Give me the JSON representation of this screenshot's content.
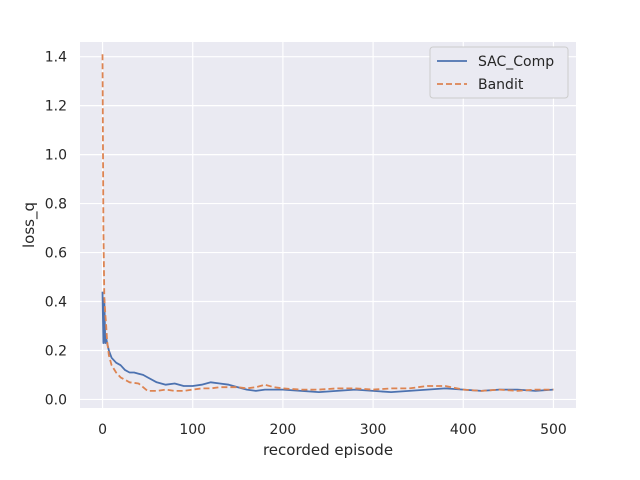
{
  "chart_data": {
    "type": "line",
    "title": "",
    "xlabel": "recorded episode",
    "ylabel": "loss_q",
    "xlim": [
      -25,
      525
    ],
    "ylim": [
      -0.035,
      1.46
    ],
    "x_ticks": [
      0,
      100,
      200,
      300,
      400,
      500
    ],
    "y_ticks": [
      0.0,
      0.2,
      0.4,
      0.6,
      0.8,
      1.0,
      1.2,
      1.4
    ],
    "x_tick_labels": [
      "0",
      "100",
      "200",
      "300",
      "400",
      "500"
    ],
    "y_tick_labels": [
      "0.0",
      "0.2",
      "0.4",
      "0.6",
      "0.8",
      "1.0",
      "1.2",
      "1.4"
    ],
    "grid": true,
    "legend_position": "top-right",
    "series": [
      {
        "name": "SAC_Comp",
        "color": "#4c72b0",
        "style": "solid",
        "points": [
          [
            0,
            0.44
          ],
          [
            1,
            0.23
          ],
          [
            2,
            0.41
          ],
          [
            3,
            0.23
          ],
          [
            4,
            0.25
          ],
          [
            5,
            0.23
          ],
          [
            7,
            0.2
          ],
          [
            10,
            0.17
          ],
          [
            15,
            0.15
          ],
          [
            20,
            0.14
          ],
          [
            25,
            0.12
          ],
          [
            30,
            0.11
          ],
          [
            35,
            0.11
          ],
          [
            40,
            0.105
          ],
          [
            45,
            0.1
          ],
          [
            50,
            0.09
          ],
          [
            60,
            0.07
          ],
          [
            70,
            0.06
          ],
          [
            80,
            0.065
          ],
          [
            90,
            0.055
          ],
          [
            100,
            0.055
          ],
          [
            110,
            0.06
          ],
          [
            120,
            0.07
          ],
          [
            130,
            0.065
          ],
          [
            140,
            0.06
          ],
          [
            150,
            0.05
          ],
          [
            160,
            0.04
          ],
          [
            170,
            0.035
          ],
          [
            180,
            0.04
          ],
          [
            200,
            0.04
          ],
          [
            220,
            0.035
          ],
          [
            240,
            0.03
          ],
          [
            260,
            0.035
          ],
          [
            280,
            0.04
          ],
          [
            300,
            0.035
          ],
          [
            320,
            0.03
          ],
          [
            340,
            0.035
          ],
          [
            360,
            0.04
          ],
          [
            380,
            0.045
          ],
          [
            400,
            0.04
          ],
          [
            420,
            0.035
          ],
          [
            440,
            0.04
          ],
          [
            460,
            0.04
          ],
          [
            480,
            0.035
          ],
          [
            500,
            0.04
          ]
        ]
      },
      {
        "name": "Bandit",
        "color": "#dd8452",
        "style": "dashed",
        "points": [
          [
            0,
            1.41
          ],
          [
            1,
            0.7
          ],
          [
            2,
            0.42
          ],
          [
            3,
            0.35
          ],
          [
            4,
            0.3
          ],
          [
            5,
            0.24
          ],
          [
            7,
            0.18
          ],
          [
            10,
            0.14
          ],
          [
            15,
            0.11
          ],
          [
            20,
            0.09
          ],
          [
            25,
            0.08
          ],
          [
            30,
            0.07
          ],
          [
            40,
            0.065
          ],
          [
            50,
            0.035
          ],
          [
            60,
            0.035
          ],
          [
            70,
            0.04
          ],
          [
            80,
            0.035
          ],
          [
            90,
            0.035
          ],
          [
            100,
            0.04
          ],
          [
            110,
            0.045
          ],
          [
            120,
            0.045
          ],
          [
            130,
            0.05
          ],
          [
            140,
            0.05
          ],
          [
            150,
            0.05
          ],
          [
            160,
            0.045
          ],
          [
            170,
            0.05
          ],
          [
            180,
            0.06
          ],
          [
            190,
            0.05
          ],
          [
            200,
            0.045
          ],
          [
            220,
            0.04
          ],
          [
            240,
            0.04
          ],
          [
            260,
            0.045
          ],
          [
            280,
            0.045
          ],
          [
            300,
            0.04
          ],
          [
            320,
            0.045
          ],
          [
            340,
            0.045
          ],
          [
            360,
            0.055
          ],
          [
            380,
            0.055
          ],
          [
            400,
            0.04
          ],
          [
            420,
            0.035
          ],
          [
            440,
            0.04
          ],
          [
            460,
            0.035
          ],
          [
            480,
            0.04
          ],
          [
            500,
            0.04
          ]
        ]
      }
    ]
  }
}
